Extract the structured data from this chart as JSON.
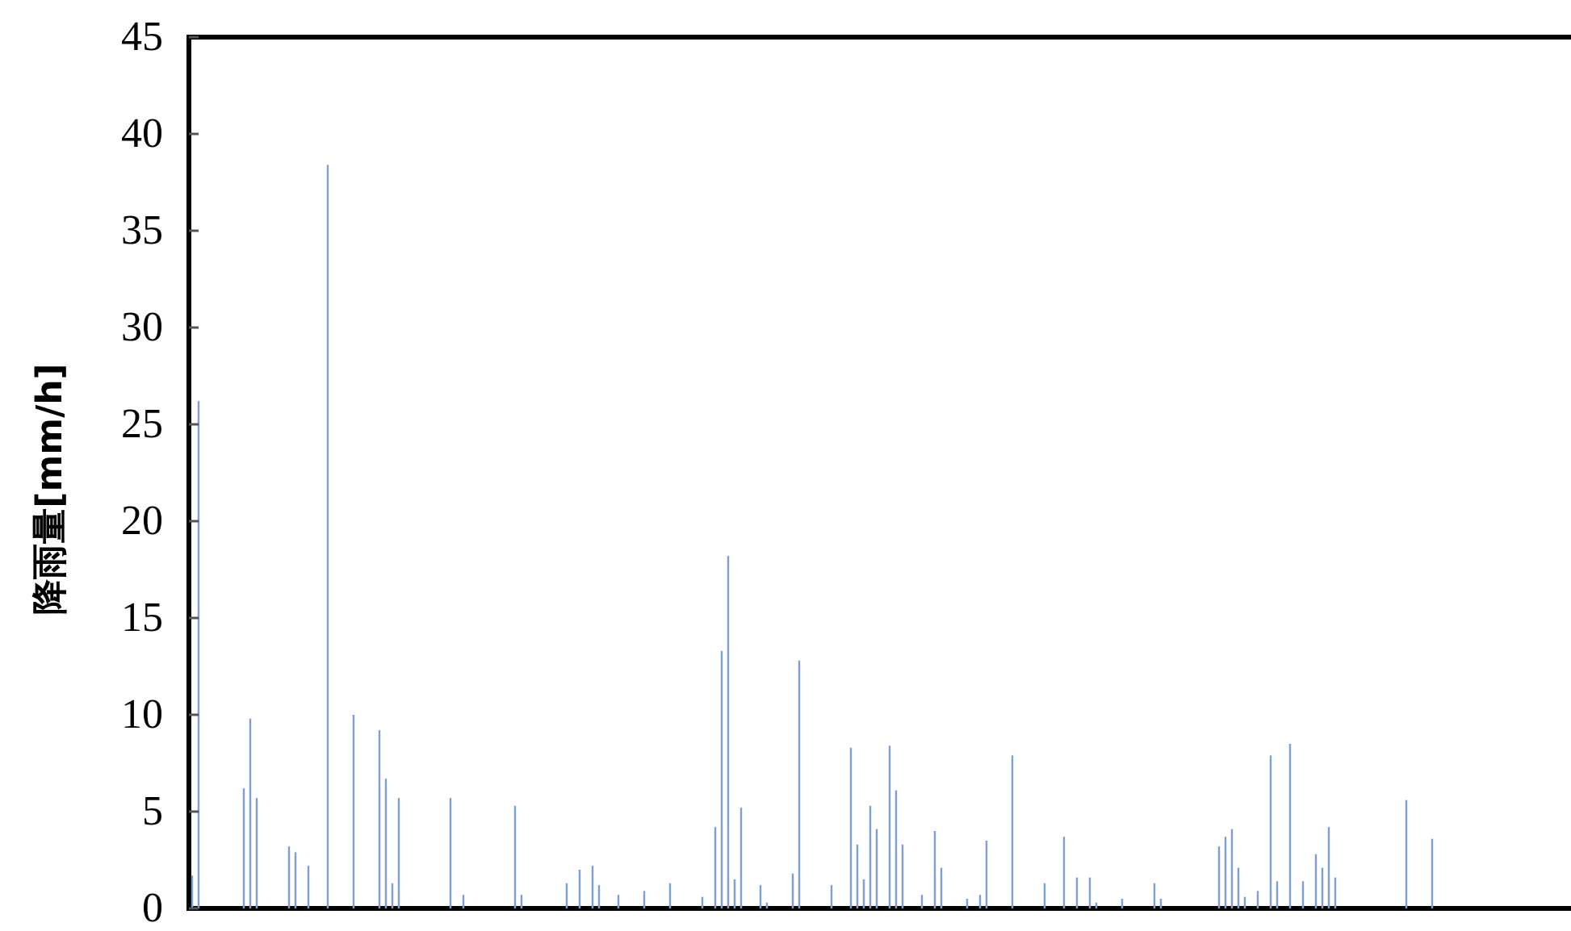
{
  "chart_data": {
    "type": "bar",
    "ylabel": "降雨量[mm/h]",
    "color": "#7f9fd4",
    "ylim": [
      0,
      45
    ],
    "yticks": [
      0,
      5,
      10,
      15,
      20,
      25,
      30,
      35,
      40,
      45
    ],
    "grid": false,
    "tick_labels": "y",
    "categories": [
      null,
      null,
      null,
      null,
      null,
      null,
      null,
      null,
      null,
      null,
      null,
      null,
      null,
      null,
      null,
      null,
      null,
      null,
      null,
      null,
      null,
      null,
      null,
      null,
      null,
      null,
      null,
      null,
      null,
      null,
      null,
      null,
      null,
      null,
      null,
      null,
      null,
      null,
      null,
      null,
      null,
      null,
      null,
      null,
      null,
      null,
      null,
      null,
      null,
      null,
      null,
      null,
      null,
      null,
      null,
      null,
      null,
      null,
      null,
      null,
      null,
      null,
      null,
      null,
      null,
      null,
      null,
      null,
      null,
      null,
      null,
      null,
      null,
      null,
      null,
      null,
      null,
      null,
      null,
      null,
      null,
      null,
      null,
      null,
      null,
      null,
      null,
      null,
      null,
      null,
      null,
      null,
      null,
      null,
      null,
      null,
      null,
      null,
      null,
      null,
      null,
      null,
      null,
      null,
      null,
      null,
      null,
      null,
      null,
      null,
      null,
      null,
      null,
      null,
      null,
      null,
      null,
      null,
      null,
      null,
      null,
      null,
      null,
      null,
      null,
      null,
      null,
      null,
      null,
      null,
      null,
      null,
      null,
      null,
      null,
      null,
      null,
      null,
      null,
      null,
      null,
      null,
      null,
      null,
      null,
      null,
      null,
      null,
      null,
      null,
      null,
      null,
      null,
      null,
      null,
      null,
      null,
      null,
      null,
      null,
      null,
      null,
      null,
      null,
      null,
      null,
      null,
      null,
      null,
      null,
      null,
      null,
      null,
      null,
      null,
      null,
      null,
      null,
      null,
      null,
      null,
      null,
      null,
      null,
      null,
      null,
      null,
      null,
      null,
      null,
      null,
      null,
      null,
      null,
      null,
      null,
      null,
      null,
      null,
      null,
      null,
      null,
      null,
      null,
      null,
      null,
      null,
      null,
      null,
      null,
      null,
      null,
      null,
      null
    ],
    "values": [
      1.7,
      26.2,
      0,
      0,
      0,
      0,
      0,
      0,
      6.2,
      9.8,
      5.7,
      0,
      0,
      0,
      0,
      3.2,
      2.9,
      0,
      2.2,
      0,
      0,
      38.4,
      0,
      0,
      0,
      10.0,
      0,
      0,
      0,
      9.2,
      6.7,
      1.3,
      5.7,
      0,
      0,
      0,
      0,
      0,
      0,
      0,
      5.7,
      0,
      0.7,
      0,
      0,
      0,
      0,
      0,
      0,
      0,
      5.3,
      0.7,
      0,
      0,
      0,
      0,
      0,
      0,
      1.3,
      0,
      2.0,
      0,
      2.2,
      1.2,
      0,
      0,
      0.7,
      0,
      0,
      0,
      0.9,
      0,
      0,
      0,
      1.3,
      0,
      0,
      0,
      0,
      0.6,
      0,
      4.2,
      13.3,
      18.2,
      1.5,
      5.2,
      0,
      0,
      1.2,
      0.3,
      0,
      0,
      0,
      1.8,
      12.8,
      0,
      0,
      0,
      0,
      1.2,
      0,
      0,
      8.3,
      3.3,
      1.5,
      5.3,
      4.1,
      0,
      8.4,
      6.1,
      3.3,
      0,
      0,
      0.7,
      0,
      4.0,
      2.1,
      0,
      0,
      0,
      0.5,
      0,
      0.7,
      3.5,
      0,
      0,
      0,
      7.9,
      0,
      0,
      0,
      0,
      1.3,
      0,
      0,
      3.7,
      0,
      1.6,
      0,
      1.6,
      0.3,
      0,
      0,
      0,
      0.5,
      0,
      0,
      0,
      0,
      1.3,
      0.5,
      0,
      0,
      0,
      0,
      0,
      0,
      0,
      0,
      3.2,
      3.7,
      4.1,
      2.1,
      0.6,
      0,
      0.9,
      0,
      7.9,
      1.4,
      0,
      8.5,
      0,
      1.4,
      0,
      2.8,
      2.1,
      4.2,
      1.6,
      0,
      0,
      0,
      0,
      0,
      0,
      0,
      0,
      0,
      0,
      5.6,
      0,
      0,
      0,
      3.6,
      0,
      0,
      0,
      0,
      0,
      0,
      0,
      0,
      0,
      0,
      0,
      0,
      0,
      0,
      0,
      0,
      0,
      0,
      0,
      0,
      0
    ]
  }
}
